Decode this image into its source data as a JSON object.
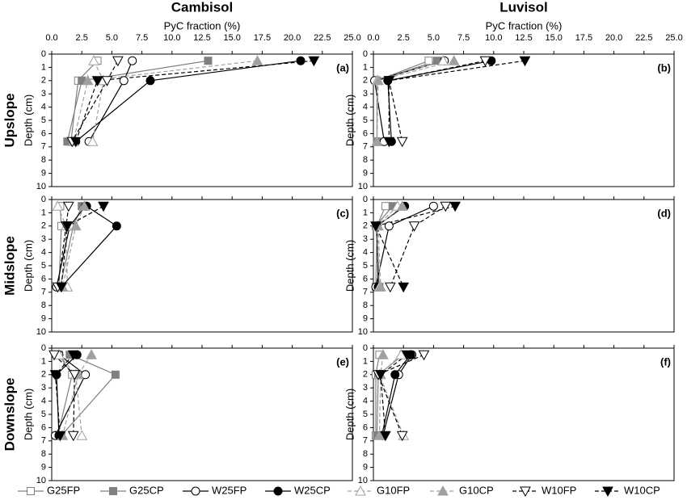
{
  "columns": [
    "Cambisol",
    "Luvisol"
  ],
  "rows": [
    "Upslope",
    "Midslope",
    "Downslope"
  ],
  "chart_data": [
    {
      "type": "line",
      "label": "(a)",
      "x_label": "PyC fraction (%)",
      "y_label": "Depth (cm)",
      "y_inverted": true,
      "xlim": [
        0,
        25
      ],
      "xticks": [
        {
          "value": 0,
          "label": "0.0"
        },
        {
          "value": 2.5,
          "label": "2.5"
        },
        {
          "value": 5,
          "label": "5.0"
        },
        {
          "value": 7.5,
          "label": "7.5"
        },
        {
          "value": 10,
          "label": "10.0"
        },
        {
          "value": 12.5,
          "label": "12.5"
        },
        {
          "value": 15,
          "label": "15.0"
        },
        {
          "value": 17.5,
          "label": "17.5"
        },
        {
          "value": 20,
          "label": "20.0"
        },
        {
          "value": 22.5,
          "label": "22.5"
        },
        {
          "value": 25,
          "label": "25.0"
        }
      ],
      "ylim": [
        0,
        10
      ],
      "yticks": [
        0,
        1,
        2,
        3,
        4,
        5,
        6,
        7,
        8,
        9,
        10
      ],
      "series": [
        {
          "name": "G25FP",
          "color": "#808080",
          "marker": "square",
          "filled": false,
          "dash": false,
          "x": [
            3.8,
            2.2,
            1.6
          ],
          "y": [
            0.5,
            2,
            6.6
          ]
        },
        {
          "name": "G25CP",
          "color": "#808080",
          "marker": "square",
          "filled": true,
          "dash": false,
          "x": [
            13,
            2.5,
            1.3
          ],
          "y": [
            0.5,
            2,
            6.6
          ]
        },
        {
          "name": "W25FP",
          "color": "#000000",
          "marker": "circle",
          "filled": false,
          "dash": false,
          "x": [
            6.7,
            6.0,
            3.1
          ],
          "y": [
            0.5,
            2,
            6.6
          ]
        },
        {
          "name": "W25CP",
          "color": "#000000",
          "marker": "circle",
          "filled": true,
          "dash": false,
          "x": [
            20.7,
            8.2,
            2.0
          ],
          "y": [
            0.5,
            2,
            6.6
          ]
        },
        {
          "name": "G10FP",
          "color": "#a0a0a0",
          "marker": "triangle",
          "filled": false,
          "dash": true,
          "x": [
            3.5,
            4.3,
            3.4
          ],
          "y": [
            0.5,
            2,
            6.6
          ]
        },
        {
          "name": "G10CP",
          "color": "#a0a0a0",
          "marker": "triangle",
          "filled": true,
          "dash": true,
          "x": [
            17.1,
            3.0,
            1.8
          ],
          "y": [
            0.5,
            2,
            6.6
          ]
        },
        {
          "name": "W10FP",
          "color": "#000000",
          "marker": "down",
          "filled": false,
          "dash": true,
          "x": [
            5.5,
            4.6,
            1.7
          ],
          "y": [
            0.5,
            2,
            6.6
          ]
        },
        {
          "name": "W10CP",
          "color": "#000000",
          "marker": "down",
          "filled": true,
          "dash": true,
          "x": [
            21.8,
            3.8,
            2.0
          ],
          "y": [
            0.5,
            2,
            6.6
          ]
        }
      ]
    },
    {
      "type": "line",
      "label": "(b)",
      "x_label": "PyC fraction (%)",
      "y_label": "Depth (cm)",
      "y_inverted": true,
      "xlim": [
        0,
        25
      ],
      "xticks": [
        {
          "value": 0,
          "label": "0.0"
        },
        {
          "value": 2.5,
          "label": "2.5"
        },
        {
          "value": 5,
          "label": "5.0"
        },
        {
          "value": 7.5,
          "label": "7.5"
        },
        {
          "value": 10,
          "label": "10.0"
        },
        {
          "value": 12.5,
          "label": "12.5"
        },
        {
          "value": 15,
          "label": "15.0"
        },
        {
          "value": 17.5,
          "label": "17.5"
        },
        {
          "value": 20,
          "label": "20.0"
        },
        {
          "value": 22.5,
          "label": "22.5"
        },
        {
          "value": 25,
          "label": "25.0"
        }
      ],
      "ylim": [
        0,
        10
      ],
      "yticks": [
        0,
        1,
        2,
        3,
        4,
        5,
        6,
        7,
        8,
        9,
        10
      ],
      "series": [
        {
          "name": "G25FP",
          "color": "#808080",
          "marker": "square",
          "filled": false,
          "dash": false,
          "x": [
            4.6,
            0.3,
            0.3
          ],
          "y": [
            0.5,
            2,
            6.6
          ]
        },
        {
          "name": "G25CP",
          "color": "#808080",
          "marker": "square",
          "filled": true,
          "dash": false,
          "x": [
            5.3,
            0.3,
            0.3
          ],
          "y": [
            0.5,
            2,
            6.6
          ]
        },
        {
          "name": "W25FP",
          "color": "#000000",
          "marker": "circle",
          "filled": false,
          "dash": false,
          "x": [
            5.9,
            0.1,
            0.9
          ],
          "y": [
            0.5,
            2,
            6.6
          ]
        },
        {
          "name": "W25CP",
          "color": "#000000",
          "marker": "circle",
          "filled": true,
          "dash": false,
          "x": [
            9.8,
            1.2,
            1.5
          ],
          "y": [
            0.5,
            2,
            6.6
          ]
        },
        {
          "name": "G10FP",
          "color": "#a0a0a0",
          "marker": "triangle",
          "filled": false,
          "dash": true,
          "x": [
            5.8,
            0.3,
            0.3
          ],
          "y": [
            0.5,
            2,
            6.6
          ]
        },
        {
          "name": "G10CP",
          "color": "#a0a0a0",
          "marker": "triangle",
          "filled": true,
          "dash": true,
          "x": [
            6.7,
            0.4,
            0.3
          ],
          "y": [
            0.5,
            2,
            6.6
          ]
        },
        {
          "name": "W10FP",
          "color": "#000000",
          "marker": "down",
          "filled": false,
          "dash": true,
          "x": [
            9.3,
            1.3,
            2.4
          ],
          "y": [
            0.5,
            2,
            6.6
          ]
        },
        {
          "name": "W10CP",
          "color": "#000000",
          "marker": "down",
          "filled": true,
          "dash": true,
          "x": [
            12.6,
            1.3,
            1.3
          ],
          "y": [
            0.5,
            2,
            6.6
          ]
        }
      ]
    },
    {
      "type": "line",
      "label": "(c)",
      "y_label": "Depth (cm)",
      "y_inverted": true,
      "xlim": [
        0,
        25
      ],
      "xticks": [
        0,
        2.5,
        5,
        7.5,
        10,
        12.5,
        15,
        17.5,
        20,
        22.5,
        25
      ],
      "ylim": [
        0,
        10
      ],
      "yticks": [
        0,
        1,
        2,
        3,
        4,
        5,
        6,
        7,
        8,
        9,
        10
      ],
      "series": [
        {
          "name": "G25FP",
          "color": "#808080",
          "marker": "square",
          "filled": false,
          "dash": false,
          "x": [
            0.7,
            0.8,
            0.6
          ],
          "y": [
            0.5,
            2,
            6.6
          ]
        },
        {
          "name": "G25CP",
          "color": "#808080",
          "marker": "square",
          "filled": true,
          "dash": false,
          "x": [
            2.5,
            1.8,
            0.7
          ],
          "y": [
            0.5,
            2,
            6.6
          ]
        },
        {
          "name": "W25FP",
          "color": "#000000",
          "marker": "circle",
          "filled": false,
          "dash": false,
          "x": [
            2.8,
            1.5,
            0.4
          ],
          "y": [
            0.5,
            2,
            6.6
          ]
        },
        {
          "name": "W25CP",
          "color": "#000000",
          "marker": "circle",
          "filled": true,
          "dash": false,
          "x": [
            2.9,
            5.4,
            0.8
          ],
          "y": [
            0.5,
            2,
            6.6
          ]
        },
        {
          "name": "G10FP",
          "color": "#a0a0a0",
          "marker": "triangle",
          "filled": false,
          "dash": true,
          "x": [
            0.5,
            1.2,
            1.3
          ],
          "y": [
            0.5,
            2,
            6.6
          ]
        },
        {
          "name": "G10CP",
          "color": "#a0a0a0",
          "marker": "triangle",
          "filled": true,
          "dash": true,
          "x": [
            2.7,
            2.0,
            0.9
          ],
          "y": [
            0.5,
            2,
            6.6
          ]
        },
        {
          "name": "W10FP",
          "color": "#000000",
          "marker": "down",
          "filled": false,
          "dash": true,
          "x": [
            1.4,
            1.2,
            0.5
          ],
          "y": [
            0.5,
            2,
            6.6
          ]
        },
        {
          "name": "W10CP",
          "color": "#000000",
          "marker": "down",
          "filled": true,
          "dash": true,
          "x": [
            4.3,
            1.3,
            0.8
          ],
          "y": [
            0.5,
            2,
            6.6
          ]
        }
      ]
    },
    {
      "type": "line",
      "label": "(d)",
      "y_label": "Depth (cm)",
      "y_inverted": true,
      "xlim": [
        0,
        25
      ],
      "xticks": [
        0,
        2.5,
        5,
        7.5,
        10,
        12.5,
        15,
        17.5,
        20,
        22.5,
        25
      ],
      "ylim": [
        0,
        10
      ],
      "yticks": [
        0,
        1,
        2,
        3,
        4,
        5,
        6,
        7,
        8,
        9,
        10
      ],
      "series": [
        {
          "name": "G25FP",
          "color": "#808080",
          "marker": "square",
          "filled": false,
          "dash": false,
          "x": [
            1.0,
            0.3,
            0.2
          ],
          "y": [
            0.5,
            2,
            6.6
          ]
        },
        {
          "name": "G25CP",
          "color": "#808080",
          "marker": "square",
          "filled": true,
          "dash": false,
          "x": [
            1.6,
            0.2,
            0.5
          ],
          "y": [
            0.5,
            2,
            6.6
          ]
        },
        {
          "name": "W25FP",
          "color": "#000000",
          "marker": "circle",
          "filled": false,
          "dash": false,
          "x": [
            5.0,
            1.3,
            0.2
          ],
          "y": [
            0.5,
            2,
            6.6
          ]
        },
        {
          "name": "W25CP",
          "color": "#000000",
          "marker": "circle",
          "filled": true,
          "dash": false,
          "x": [
            2.6,
            0.3,
            0.4
          ],
          "y": [
            0.5,
            2,
            6.6
          ]
        },
        {
          "name": "G10FP",
          "color": "#a0a0a0",
          "marker": "triangle",
          "filled": false,
          "dash": true,
          "x": [
            2.0,
            0.3,
            0.5
          ],
          "y": [
            0.5,
            2,
            6.6
          ]
        },
        {
          "name": "G10CP",
          "color": "#a0a0a0",
          "marker": "triangle",
          "filled": true,
          "dash": true,
          "x": [
            2.4,
            0.4,
            0.6
          ],
          "y": [
            0.5,
            2,
            6.6
          ]
        },
        {
          "name": "W10FP",
          "color": "#000000",
          "marker": "down",
          "filled": false,
          "dash": true,
          "x": [
            6.0,
            3.4,
            1.4
          ],
          "y": [
            0.5,
            2,
            6.6
          ]
        },
        {
          "name": "W10CP",
          "color": "#000000",
          "marker": "down",
          "filled": true,
          "dash": true,
          "x": [
            6.8,
            0.2,
            2.5
          ],
          "y": [
            0.5,
            2,
            6.6
          ]
        }
      ]
    },
    {
      "type": "line",
      "label": "(e)",
      "y_label": "Depth (cm)",
      "y_inverted": true,
      "xlim": [
        0,
        25
      ],
      "xticks": [
        0,
        2.5,
        5,
        7.5,
        10,
        12.5,
        15,
        17.5,
        20,
        22.5,
        25
      ],
      "ylim": [
        0,
        10
      ],
      "yticks": [
        0,
        1,
        2,
        3,
        4,
        5,
        6,
        7,
        8,
        9,
        10
      ],
      "series": [
        {
          "name": "G25FP",
          "color": "#808080",
          "marker": "square",
          "filled": false,
          "dash": false,
          "x": [
            0.6,
            1.7,
            0.5
          ],
          "y": [
            0.5,
            2,
            6.6
          ]
        },
        {
          "name": "G25CP",
          "color": "#808080",
          "marker": "square",
          "filled": true,
          "dash": false,
          "x": [
            1.5,
            5.3,
            0.8
          ],
          "y": [
            0.5,
            2,
            6.6
          ]
        },
        {
          "name": "W25FP",
          "color": "#000000",
          "marker": "circle",
          "filled": false,
          "dash": false,
          "x": [
            0.6,
            2.8,
            0.3
          ],
          "y": [
            0.5,
            2,
            6.6
          ]
        },
        {
          "name": "W25CP",
          "color": "#000000",
          "marker": "circle",
          "filled": true,
          "dash": false,
          "x": [
            2.1,
            0.4,
            0.6
          ],
          "y": [
            0.5,
            2,
            6.6
          ]
        },
        {
          "name": "G10FP",
          "color": "#a0a0a0",
          "marker": "triangle",
          "filled": false,
          "dash": true,
          "x": [
            0.6,
            2.0,
            2.5
          ],
          "y": [
            0.5,
            2,
            6.6
          ]
        },
        {
          "name": "G10CP",
          "color": "#a0a0a0",
          "marker": "triangle",
          "filled": true,
          "dash": true,
          "x": [
            3.3,
            2.2,
            0.9
          ],
          "y": [
            0.5,
            2,
            6.6
          ]
        },
        {
          "name": "W10FP",
          "color": "#000000",
          "marker": "down",
          "filled": false,
          "dash": true,
          "x": [
            0.2,
            1.9,
            1.8
          ],
          "y": [
            0.5,
            2,
            6.6
          ]
        },
        {
          "name": "W10CP",
          "color": "#000000",
          "marker": "down",
          "filled": true,
          "dash": true,
          "x": [
            1.8,
            0.3,
            0.7
          ],
          "y": [
            0.5,
            2,
            6.6
          ]
        }
      ]
    },
    {
      "type": "line",
      "label": "(f)",
      "y_label": "Depth (cm)",
      "y_inverted": true,
      "xlim": [
        0,
        25
      ],
      "xticks": [
        0,
        2.5,
        5,
        7.5,
        10,
        12.5,
        15,
        17.5,
        20,
        22.5,
        25
      ],
      "ylim": [
        0,
        10
      ],
      "yticks": [
        0,
        1,
        2,
        3,
        4,
        5,
        6,
        7,
        8,
        9,
        10
      ],
      "series": [
        {
          "name": "G25FP",
          "color": "#808080",
          "marker": "square",
          "filled": false,
          "dash": false,
          "x": [
            0.5,
            0.2,
            0.2
          ],
          "y": [
            0.5,
            2,
            6.6
          ]
        },
        {
          "name": "G25CP",
          "color": "#808080",
          "marker": "square",
          "filled": true,
          "dash": false,
          "x": [
            2.5,
            0.4,
            0.3
          ],
          "y": [
            0.5,
            2,
            6.6
          ]
        },
        {
          "name": "W25FP",
          "color": "#000000",
          "marker": "circle",
          "filled": false,
          "dash": false,
          "x": [
            3.2,
            2.1,
            0.8
          ],
          "y": [
            0.5,
            2,
            6.6
          ]
        },
        {
          "name": "W25CP",
          "color": "#000000",
          "marker": "circle",
          "filled": true,
          "dash": false,
          "x": [
            3.1,
            1.8,
            0.7
          ],
          "y": [
            0.5,
            2,
            6.6
          ]
        },
        {
          "name": "G10FP",
          "color": "#a0a0a0",
          "marker": "triangle",
          "filled": false,
          "dash": true,
          "x": [
            2.3,
            0.5,
            2.5
          ],
          "y": [
            0.5,
            2,
            6.6
          ]
        },
        {
          "name": "G10CP",
          "color": "#a0a0a0",
          "marker": "triangle",
          "filled": true,
          "dash": true,
          "x": [
            0.8,
            0.6,
            0.5
          ],
          "y": [
            0.5,
            2,
            6.6
          ]
        },
        {
          "name": "W10FP",
          "color": "#000000",
          "marker": "down",
          "filled": false,
          "dash": true,
          "x": [
            4.2,
            0.4,
            2.4
          ],
          "y": [
            0.5,
            2,
            6.6
          ]
        },
        {
          "name": "W10CP",
          "color": "#000000",
          "marker": "down",
          "filled": true,
          "dash": true,
          "x": [
            2.8,
            0.6,
            1.0
          ],
          "y": [
            0.5,
            2,
            6.6
          ]
        }
      ]
    }
  ]
}
